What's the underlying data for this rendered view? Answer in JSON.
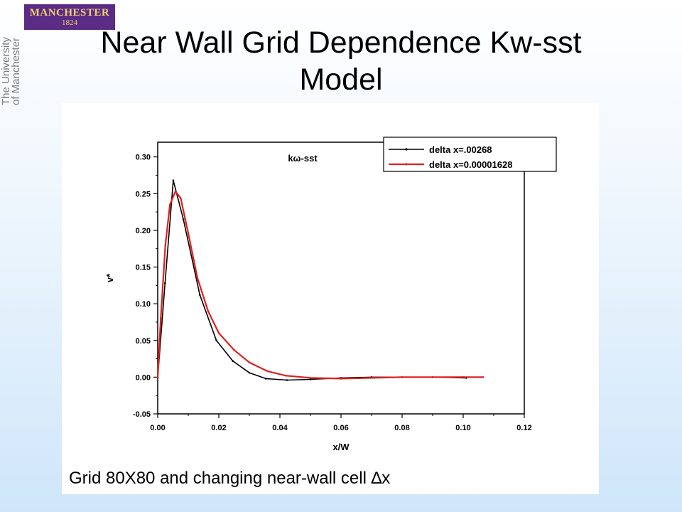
{
  "logo": {
    "name": "MANCHESTER",
    "year": "1824",
    "university": [
      "The University",
      "of Manchester"
    ]
  },
  "title": {
    "line1": "Near Wall Grid Dependence Kw-sst",
    "line2": "Model"
  },
  "caption": "Grid 80X80 and changing near-wall cell ∆x",
  "chart_data": {
    "type": "line",
    "title": "kω-sst",
    "xlabel": "x/W",
    "ylabel": "v*",
    "xlim": [
      0.0,
      0.12
    ],
    "ylim": [
      -0.05,
      0.32
    ],
    "xticks": [
      "0.00",
      "0.02",
      "0.04",
      "0.06",
      "0.08",
      "0.10",
      "0.12"
    ],
    "yticks": [
      "-0.05",
      "0.00",
      "0.05",
      "0.10",
      "0.15",
      "0.20",
      "0.25",
      "0.30"
    ],
    "legend_position": "top-right",
    "series": [
      {
        "name": "delta x=.00268",
        "color": "#000000",
        "x": [
          0.0,
          0.0024,
          0.0051,
          0.0084,
          0.0138,
          0.0192,
          0.0246,
          0.03,
          0.0354,
          0.0423,
          0.05,
          0.06,
          0.07,
          0.08,
          0.09,
          0.101
        ],
        "y": [
          0.0,
          0.128,
          0.268,
          0.215,
          0.112,
          0.05,
          0.022,
          0.006,
          -0.002,
          -0.004,
          -0.003,
          -0.001,
          0.0,
          0.0,
          0.0,
          -0.001
        ]
      },
      {
        "name": "delta x=0.00001628",
        "color": "#e02020",
        "x": [
          0.0,
          0.001,
          0.0025,
          0.004,
          0.0058,
          0.0075,
          0.01,
          0.013,
          0.0165,
          0.02,
          0.025,
          0.03,
          0.036,
          0.042,
          0.05,
          0.06,
          0.07,
          0.08,
          0.09,
          0.1,
          0.1065
        ],
        "y": [
          0.0,
          0.08,
          0.18,
          0.235,
          0.253,
          0.244,
          0.196,
          0.135,
          0.09,
          0.06,
          0.037,
          0.02,
          0.008,
          0.002,
          -0.001,
          -0.002,
          -0.001,
          0.0,
          0.0,
          0.0,
          0.0
        ]
      }
    ]
  }
}
